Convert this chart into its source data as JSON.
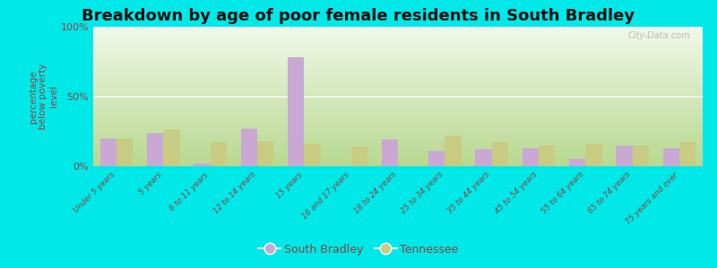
{
  "title": "Breakdown by age of poor female residents in South Bradley",
  "categories": [
    "Under 5 years",
    "5 years",
    "6 to 11 years",
    "12 to 14 years",
    "15 years",
    "16 and 17 years",
    "18 to 24 years",
    "25 to 34 years",
    "35 to 44 years",
    "45 to 54 years",
    "55 to 64 years",
    "65 to 74 years",
    "75 years and over"
  ],
  "south_bradley": [
    20,
    24,
    2,
    27,
    78,
    0,
    19,
    11,
    12,
    13,
    5,
    15,
    13
  ],
  "tennessee": [
    20,
    26,
    17,
    18,
    16,
    14,
    0,
    22,
    17,
    15,
    16,
    15,
    17
  ],
  "south_bradley_color": "#c9a8d4",
  "tennessee_color": "#c8cc82",
  "ylabel": "percentage\nbelow poverty\nlevel",
  "ylim": [
    0,
    100
  ],
  "yticks": [
    0,
    50,
    100
  ],
  "ytick_labels": [
    "0%",
    "50%",
    "100%"
  ],
  "bg_color_bottom": "#b8d890",
  "bg_color_top": "#f0f8e8",
  "outer_background": "#00e8e8",
  "bar_width": 0.35,
  "title_fontsize": 13,
  "axis_label_color": "#884444",
  "tick_label_color": "#884444",
  "watermark": "City-Data.com"
}
